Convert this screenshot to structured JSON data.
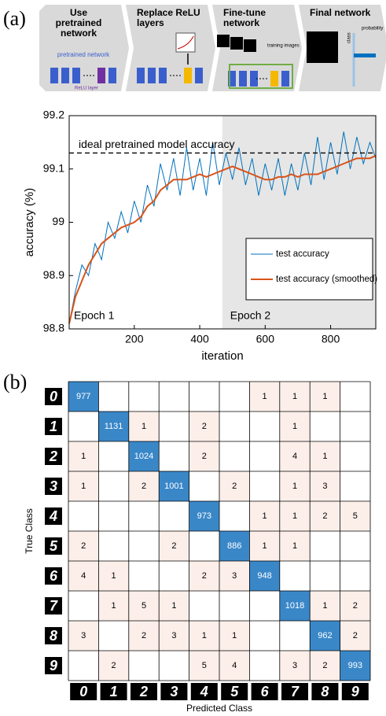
{
  "panel_labels": [
    "(a)",
    "(b)"
  ],
  "pipeline": {
    "steps": [
      {
        "title": "Use pretrained network",
        "labels": [
          "pretrained network",
          "ReLU layer"
        ]
      },
      {
        "title": "Replace ReLU layers",
        "labels": []
      },
      {
        "title": "Fine-tune network",
        "labels": [
          "training images"
        ]
      },
      {
        "title": "Final network",
        "labels": [
          "probability",
          "class"
        ]
      }
    ]
  },
  "chart_data": [
    {
      "type": "line",
      "xlabel": "iteration",
      "ylabel": "accuracy (%)",
      "x": [
        1,
        20,
        40,
        60,
        80,
        100,
        120,
        140,
        160,
        180,
        200,
        220,
        240,
        260,
        280,
        300,
        320,
        340,
        360,
        380,
        400,
        420,
        440,
        460,
        480,
        500,
        520,
        540,
        560,
        580,
        600,
        620,
        640,
        660,
        680,
        700,
        720,
        740,
        760,
        780,
        800,
        820,
        840,
        860,
        880,
        900,
        920,
        938
      ],
      "series": [
        {
          "name": "test accuracy",
          "color": "#0072bd",
          "values": [
            98.81,
            98.87,
            98.92,
            98.9,
            98.96,
            98.93,
            99.0,
            98.97,
            99.02,
            98.98,
            99.04,
            99.0,
            99.07,
            99.03,
            99.11,
            99.06,
            99.12,
            99.05,
            99.14,
            99.06,
            99.12,
            99.05,
            99.15,
            99.07,
            99.13,
            99.08,
            99.14,
            99.07,
            99.12,
            99.05,
            99.11,
            99.06,
            99.12,
            99.05,
            99.11,
            99.06,
            99.13,
            99.07,
            99.16,
            99.08,
            99.15,
            99.09,
            99.17,
            99.1,
            99.16,
            99.11,
            99.15,
            99.12
          ]
        },
        {
          "name": "test accuracy (smoothed)",
          "color": "#d95319",
          "values": [
            98.81,
            98.86,
            98.89,
            98.92,
            98.94,
            98.96,
            98.97,
            98.98,
            98.99,
            98.995,
            99.0,
            99.01,
            99.03,
            99.04,
            99.06,
            99.07,
            99.08,
            99.08,
            99.08,
            99.085,
            99.09,
            99.085,
            99.09,
            99.095,
            99.1,
            99.105,
            99.1,
            99.095,
            99.09,
            99.085,
            99.08,
            99.08,
            99.085,
            99.085,
            99.09,
            99.085,
            99.09,
            99.09,
            99.09,
            99.095,
            99.1,
            99.105,
            99.11,
            99.115,
            99.12,
            99.12,
            99.12,
            99.125
          ]
        }
      ],
      "xlim": [
        1,
        938
      ],
      "xticks": [
        200,
        400,
        600,
        800
      ],
      "ylim": [
        98.8,
        99.2
      ],
      "yticks": [
        98.8,
        98.9,
        99,
        99.1,
        99.2
      ],
      "reference_line": {
        "value": 99.13,
        "label": "ideal pretrained model accuracy"
      },
      "shaded_xlim": [
        469,
        938
      ],
      "shade_color": "#e6e6e6",
      "annotations": [
        "Epoch 1",
        "Epoch 2"
      ],
      "legend": "lower right"
    },
    {
      "type": "heatmap",
      "xlabel": "Predicted Class",
      "ylabel": "True Class",
      "x_categories": [
        "0",
        "1",
        "2",
        "3",
        "4",
        "5",
        "6",
        "7",
        "8",
        "9"
      ],
      "y_categories": [
        "0",
        "1",
        "2",
        "3",
        "4",
        "5",
        "6",
        "7",
        "8",
        "9"
      ],
      "values": [
        [
          977,
          null,
          null,
          null,
          null,
          null,
          1,
          1,
          1,
          null
        ],
        [
          null,
          1131,
          1,
          null,
          2,
          null,
          null,
          1,
          null,
          null
        ],
        [
          1,
          null,
          1024,
          null,
          2,
          null,
          null,
          4,
          1,
          null
        ],
        [
          1,
          null,
          2,
          1001,
          null,
          2,
          null,
          1,
          3,
          null
        ],
        [
          null,
          null,
          null,
          null,
          973,
          null,
          1,
          1,
          2,
          5
        ],
        [
          2,
          null,
          null,
          2,
          null,
          886,
          1,
          1,
          null,
          null
        ],
        [
          4,
          1,
          null,
          null,
          2,
          3,
          948,
          null,
          null,
          null
        ],
        [
          null,
          1,
          5,
          1,
          null,
          null,
          null,
          1018,
          1,
          2
        ],
        [
          3,
          null,
          2,
          3,
          1,
          1,
          null,
          null,
          962,
          2
        ],
        [
          null,
          2,
          null,
          null,
          5,
          4,
          null,
          3,
          2,
          993
        ]
      ],
      "diagonal_color": "#3a87c8",
      "offdiagonal_color": "#fcefea"
    }
  ]
}
